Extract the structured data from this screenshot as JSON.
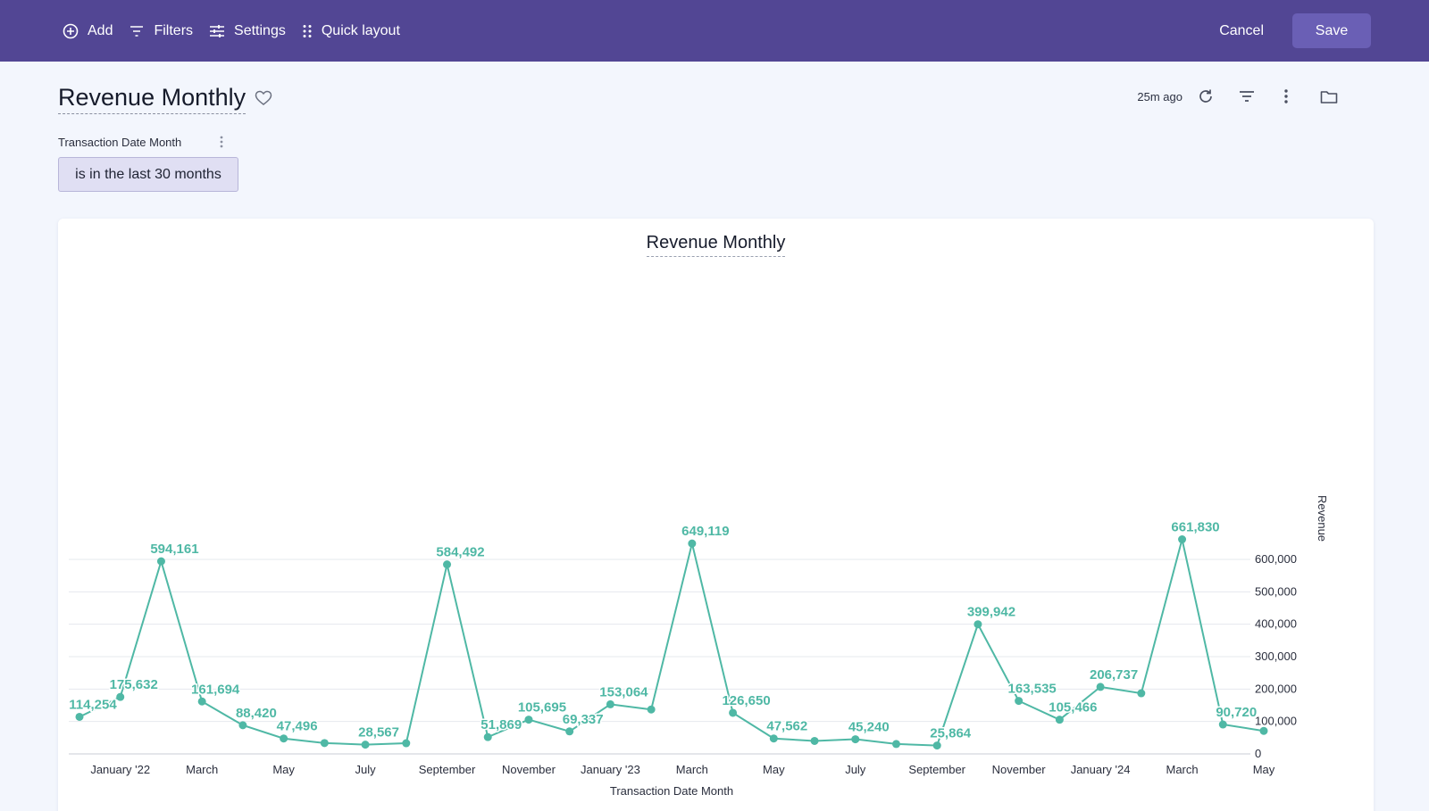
{
  "toolbar": {
    "add_label": "Add",
    "filters_label": "Filters",
    "settings_label": "Settings",
    "quick_layout_label": "Quick layout",
    "cancel_label": "Cancel",
    "save_label": "Save"
  },
  "header": {
    "title": "Revenue Monthly",
    "updated": "25m ago"
  },
  "filter": {
    "label": "Transaction Date Month",
    "value": "is in the last 30 months"
  },
  "colors": {
    "topbar": "#524694",
    "accent": "#4fb8a5",
    "pill_bg": "#e0dff3"
  },
  "chart_data": {
    "type": "line",
    "title": "Revenue Monthly",
    "xlabel": "Transaction Date Month",
    "ylabel": "Revenue",
    "ylim": [
      0,
      680000
    ],
    "yticks": [
      0,
      100000,
      200000,
      300000,
      400000,
      500000,
      600000
    ],
    "ytick_labels": [
      "0",
      "100,000",
      "200,000",
      "300,000",
      "400,000",
      "500,000",
      "600,000"
    ],
    "grid": true,
    "x": [
      "2021-12",
      "2022-01",
      "2022-02",
      "2022-03",
      "2022-04",
      "2022-05",
      "2022-06",
      "2022-07",
      "2022-08",
      "2022-09",
      "2022-10",
      "2022-11",
      "2022-12",
      "2023-01",
      "2023-02",
      "2023-03",
      "2023-04",
      "2023-05",
      "2023-06",
      "2023-07",
      "2023-08",
      "2023-09",
      "2023-10",
      "2023-11",
      "2023-12",
      "2024-01",
      "2024-02",
      "2024-03",
      "2024-04",
      "2024-05"
    ],
    "xtick_labels": [
      "January '22",
      "March",
      "May",
      "July",
      "September",
      "November",
      "January '23",
      "March",
      "May",
      "July",
      "September",
      "November",
      "January '24",
      "March",
      "May"
    ],
    "xtick_dates": [
      "2022-01",
      "2022-03",
      "2022-05",
      "2022-07",
      "2022-09",
      "2022-11",
      "2023-01",
      "2023-03",
      "2023-05",
      "2023-07",
      "2023-09",
      "2023-11",
      "2024-01",
      "2024-03",
      "2024-05"
    ],
    "series": [
      {
        "values": [
          114254,
          175632,
          594161,
          161694,
          88420,
          47496,
          33500,
          28567,
          33000,
          584492,
          51869,
          105695,
          69337,
          153064,
          137000,
          649119,
          126650,
          47562,
          40000,
          45240,
          30500,
          25864,
          399942,
          163535,
          105466,
          206737,
          187000,
          661830,
          90720,
          71000
        ],
        "labels": [
          "114,254",
          "175,632",
          "594,161",
          "161,694",
          "88,420",
          "47,496",
          "",
          "28,567",
          "",
          "584,492",
          "51,869",
          "105,695",
          "69,337",
          "153,064",
          "",
          "649,119",
          "126,650",
          "47,562",
          "",
          "45,240",
          "",
          "25,864",
          "399,942",
          "163,535",
          "105,466",
          "206,737",
          "",
          "661,830",
          "90,720",
          ""
        ],
        "color": "#4fb8a5"
      }
    ]
  }
}
